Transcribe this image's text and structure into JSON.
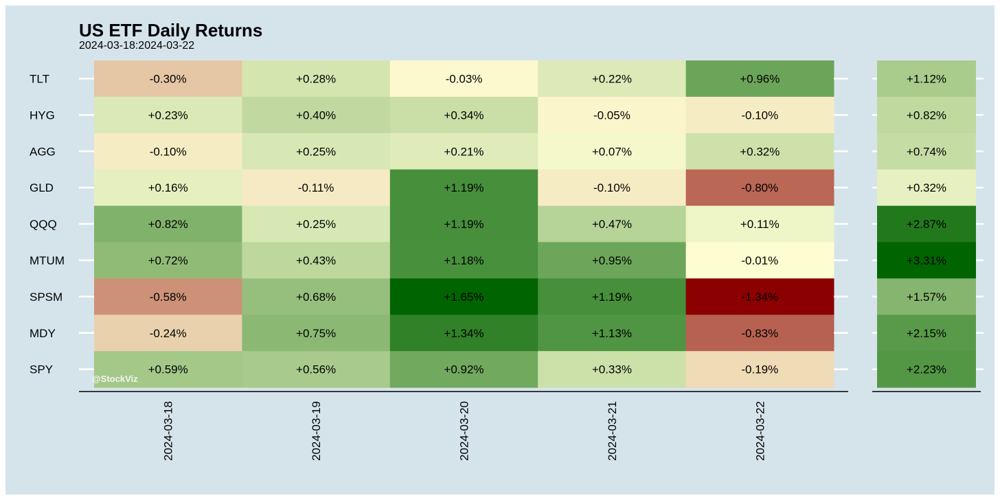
{
  "chart_data": {
    "type": "heatmap",
    "title": "US ETF Daily Returns",
    "subtitle": "2024-03-18:2024-03-22",
    "watermark": "@StockViz",
    "x_categories": [
      "2024-03-18",
      "2024-03-19",
      "2024-03-20",
      "2024-03-21",
      "2024-03-22"
    ],
    "y_categories": [
      "TLT",
      "HYG",
      "AGG",
      "GLD",
      "QQQ",
      "MTUM",
      "SPSM",
      "MDY",
      "SPY"
    ],
    "values": [
      [
        -0.3,
        0.28,
        -0.03,
        0.22,
        0.96
      ],
      [
        0.23,
        0.4,
        0.34,
        -0.05,
        -0.1
      ],
      [
        -0.1,
        0.25,
        0.21,
        0.07,
        0.32
      ],
      [
        0.16,
        -0.11,
        1.19,
        -0.1,
        -0.8
      ],
      [
        0.82,
        0.25,
        1.19,
        0.47,
        0.11
      ],
      [
        0.72,
        0.43,
        1.18,
        0.95,
        -0.01
      ],
      [
        -0.58,
        0.68,
        1.65,
        1.19,
        -1.34
      ],
      [
        -0.24,
        0.75,
        1.34,
        1.13,
        -0.83
      ],
      [
        0.59,
        0.56,
        0.92,
        0.33,
        -0.19
      ]
    ],
    "labels": [
      [
        "-0.30%",
        "+0.28%",
        "-0.03%",
        "+0.22%",
        "+0.96%"
      ],
      [
        "+0.23%",
        "+0.40%",
        "+0.34%",
        "-0.05%",
        "-0.10%"
      ],
      [
        "-0.10%",
        "+0.25%",
        "+0.21%",
        "+0.07%",
        "+0.32%"
      ],
      [
        "+0.16%",
        "-0.11%",
        "+1.19%",
        "-0.10%",
        "-0.80%"
      ],
      [
        "+0.82%",
        "+0.25%",
        "+1.19%",
        "+0.47%",
        "+0.11%"
      ],
      [
        "+0.72%",
        "+0.43%",
        "+1.18%",
        "+0.95%",
        "-0.01%"
      ],
      [
        "-0.58%",
        "+0.68%",
        "+1.65%",
        "+1.19%",
        "-1.34%"
      ],
      [
        "-0.24%",
        "+0.75%",
        "+1.34%",
        "+1.13%",
        "-0.83%"
      ],
      [
        "+0.59%",
        "+0.56%",
        "+0.92%",
        "+0.33%",
        "-0.19%"
      ]
    ],
    "totals": [
      1.12,
      0.82,
      0.74,
      0.32,
      2.87,
      3.31,
      1.57,
      2.15,
      2.23
    ],
    "total_labels": [
      "+1.12%",
      "+0.82%",
      "+0.74%",
      "+0.32%",
      "+2.87%",
      "+3.31%",
      "+1.57%",
      "+2.15%",
      "+2.23%"
    ],
    "color_scale": {
      "low": "#8b0000",
      "mid": "#ffffd4",
      "high": "#006400"
    },
    "legend": "none"
  }
}
